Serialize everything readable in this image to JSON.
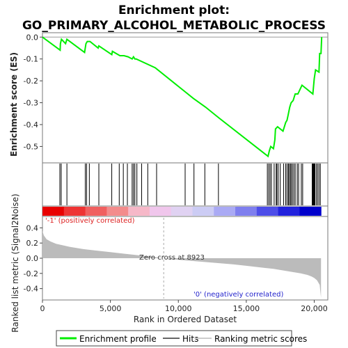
{
  "chart_data": {
    "type": "line",
    "title_lines": [
      "Enrichment plot:",
      "GO_PRIMARY_ALCOHOL_METABOLIC_PROCESS"
    ],
    "ylabel_es": "Enrichment score (ES)",
    "ylabel_metric": "Ranked list metric (Signal2Noise)",
    "xlabel": "Rank in Ordered Dataset",
    "xlim": [
      0,
      21000
    ],
    "es_ylim": [
      -0.575,
      0.02
    ],
    "metric_ylim": [
      -0.55,
      0.55
    ],
    "x_ticks": [
      0,
      5000,
      10000,
      15000,
      20000
    ],
    "x_tick_labels": [
      "0",
      "5,000",
      "10,000",
      "15,000",
      "20,000"
    ],
    "es_ticks": [
      0.0,
      -0.1,
      -0.2,
      -0.3,
      -0.4,
      -0.5
    ],
    "es_tick_labels": [
      "0.0",
      "-0.1",
      "-0.2",
      "-0.3",
      "-0.4",
      "-0.5"
    ],
    "metric_ticks": [
      0.4,
      0.2,
      0.0,
      -0.2,
      -0.4
    ],
    "metric_tick_labels": [
      "0.4",
      "0.2",
      "0.0",
      "-0.2",
      "-0.4"
    ],
    "es_curve": {
      "name": "Enrichment profile",
      "x": [
        0,
        1300,
        1320,
        1400,
        1700,
        1800,
        3100,
        3200,
        3300,
        3500,
        4100,
        4150,
        5100,
        5150,
        5700,
        5800,
        6000,
        6300,
        6600,
        6700,
        6800,
        6900,
        8300,
        10500,
        11100,
        12000,
        13000,
        16600,
        16700,
        16800,
        17000,
        17100,
        17150,
        17300,
        17700,
        17900,
        18000,
        18100,
        18200,
        18300,
        18450,
        18600,
        18800,
        19100,
        19900,
        20000,
        20100,
        20350,
        20400,
        20500,
        20550
      ],
      "y": [
        0.0,
        -0.06,
        -0.03,
        -0.01,
        -0.03,
        -0.01,
        -0.07,
        -0.03,
        -0.02,
        -0.02,
        -0.05,
        -0.04,
        -0.08,
        -0.065,
        -0.085,
        -0.085,
        -0.085,
        -0.09,
        -0.1,
        -0.09,
        -0.1,
        -0.1,
        -0.14,
        -0.25,
        -0.28,
        -0.32,
        -0.37,
        -0.545,
        -0.52,
        -0.5,
        -0.51,
        -0.47,
        -0.42,
        -0.41,
        -0.43,
        -0.39,
        -0.38,
        -0.35,
        -0.32,
        -0.3,
        -0.29,
        -0.26,
        -0.26,
        -0.22,
        -0.26,
        -0.19,
        -0.15,
        -0.16,
        -0.075,
        -0.075,
        0.0
      ]
    },
    "hits": {
      "name": "Hits",
      "x": [
        1280,
        1380,
        1800,
        3150,
        3250,
        3450,
        4150,
        5100,
        5650,
        5950,
        6250,
        6600,
        6700,
        6800,
        6950,
        7300,
        7750,
        8400,
        10500,
        11150,
        11950,
        12950,
        16550,
        16650,
        16750,
        16850,
        17050,
        17200,
        17250,
        17350,
        17500,
        17750,
        17900,
        18000,
        18100,
        18150,
        18250,
        18300,
        18400,
        18500,
        18600,
        18750,
        18850,
        19050,
        19150,
        19850,
        19900,
        19950,
        20000,
        20050,
        20150,
        20250,
        20350,
        20450
      ]
    },
    "metric": {
      "name": "Ranking metric scores",
      "x": [
        0,
        100,
        300,
        600,
        1000,
        2000,
        3000,
        4000,
        5000,
        6000,
        7000,
        8000,
        8923,
        10000,
        12000,
        14000,
        15000,
        16000,
        17000,
        18000,
        19000,
        19500,
        19800,
        20000,
        20200,
        20400,
        20500
      ],
      "y": [
        0.36,
        0.3,
        0.25,
        0.22,
        0.19,
        0.15,
        0.12,
        0.1,
        0.08,
        0.06,
        0.04,
        0.02,
        0.0,
        -0.02,
        -0.05,
        -0.08,
        -0.1,
        -0.12,
        -0.14,
        -0.17,
        -0.2,
        -0.22,
        -0.24,
        -0.26,
        -0.29,
        -0.35,
        -0.52
      ]
    },
    "zero_cross": 8923,
    "annotations": {
      "pos": "'-1' (positively correlated)",
      "neg": "'0' (negatively correlated)",
      "zero": "Zero cross at 8923"
    },
    "legend": [
      "Enrichment profile",
      "Hits",
      "Ranking metric scores"
    ],
    "colors": {
      "es_line": "#00ee00",
      "hit": "#000000",
      "metric_fill": "#bbbbbb",
      "pos_text": "#dd2222",
      "neg_text": "#2222cc",
      "zero_line": "#aaaaaa",
      "heat": [
        "#e80000",
        "#ee3333",
        "#f06060",
        "#f38c8c",
        "#f6b8c8",
        "#f0c6ec",
        "#e0d2f2",
        "#ccccf4",
        "#aaaaf4",
        "#7f7fee",
        "#4d4de8",
        "#2222dd",
        "#0000cc"
      ]
    }
  }
}
